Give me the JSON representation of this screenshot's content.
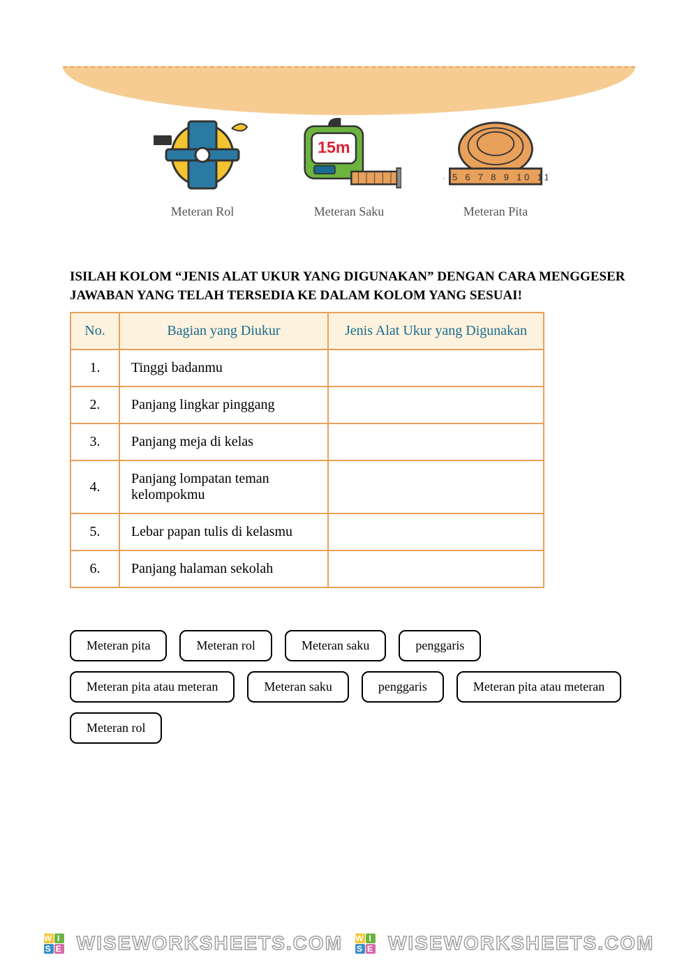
{
  "banner": {
    "bg_color": "#f7cc92",
    "dash_color": "#e8a05a"
  },
  "tools": [
    {
      "label": "Meteran Rol"
    },
    {
      "label": "Meteran Saku"
    },
    {
      "label": "Meteran Pita"
    }
  ],
  "instruction": "ISILAH KOLOM “JENIS ALAT UKUR YANG DIGUNAKAN” DENGAN CARA MENGGESER JAWABAN YANG TELAH TERSEDIA KE DALAM KOLOM YANG SESUAI!",
  "table": {
    "border_color": "#e8a05a",
    "header_bg": "#fdf2dd",
    "header_color": "#1a6b8f",
    "columns": [
      "No.",
      "Bagian yang Diukur",
      "Jenis Alat Ukur yang Digunakan"
    ],
    "rows": [
      {
        "num": "1.",
        "part": "Tinggi badanmu",
        "answer": ""
      },
      {
        "num": "2.",
        "part": "Panjang lingkar pinggang",
        "answer": ""
      },
      {
        "num": "3.",
        "part": "Panjang meja di kelas",
        "answer": ""
      },
      {
        "num": "4.",
        "part": "Panjang lompatan teman kelompokmu",
        "answer": ""
      },
      {
        "num": "5.",
        "part": "Lebar papan tulis di kelasmu",
        "answer": ""
      },
      {
        "num": "6.",
        "part": "Panjang halaman sekolah",
        "answer": ""
      }
    ]
  },
  "chips": [
    "Meteran pita",
    "Meteran rol",
    "Meteran saku",
    "penggaris",
    "Meteran pita atau meteran",
    "Meteran saku",
    "penggaris",
    "Meteran pita atau meteran",
    "Meteran rol"
  ],
  "watermark": {
    "text": "WISEWORKSHEETS.COM",
    "logo_letters": [
      "W",
      "I",
      "S",
      "E"
    ],
    "logo_colors": [
      "#f4c430",
      "#6db33f",
      "#3b8fc4",
      "#d66aa8"
    ]
  }
}
